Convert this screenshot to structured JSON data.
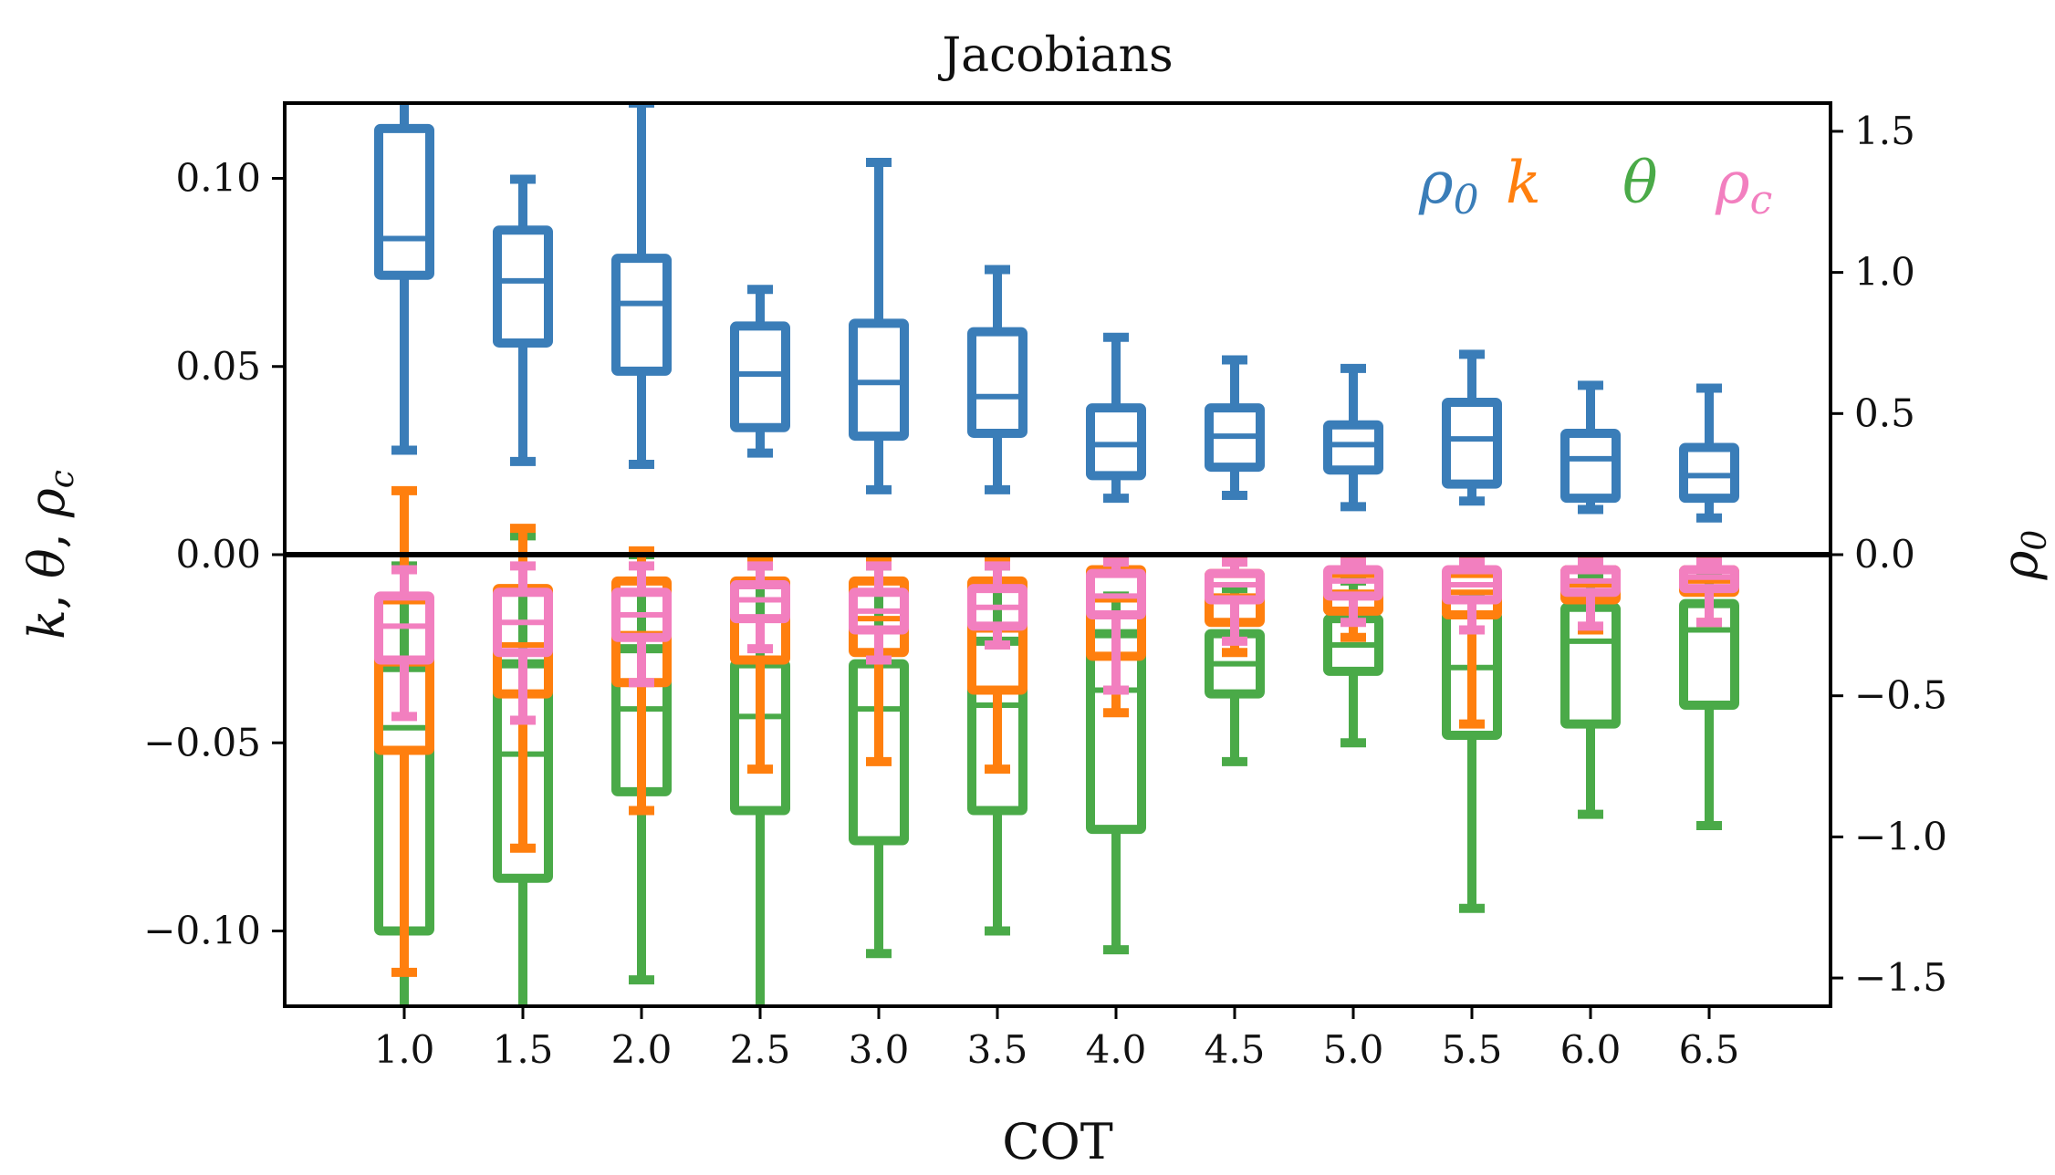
{
  "chart_data": {
    "type": "box",
    "title": "Jacobians",
    "xlabel": "COT",
    "ylabel_left": "k, θ, ρ_c",
    "ylabel_right": "ρ_0",
    "ylim_left": [
      -0.12,
      0.12
    ],
    "ylim_right": [
      -1.6,
      1.6
    ],
    "categories": [
      "1.0",
      "1.5",
      "2.0",
      "2.5",
      "3.0",
      "3.5",
      "4.0",
      "4.5",
      "5.0",
      "5.5",
      "6.0",
      "6.5"
    ],
    "y_ticks_left": [
      -0.1,
      -0.05,
      0.0,
      0.05,
      0.1
    ],
    "y_tick_labels_left": [
      "−0.10",
      "−0.05",
      "0.00",
      "0.05",
      "0.10"
    ],
    "y_ticks_right": [
      -1.5,
      -1.0,
      -0.5,
      0.0,
      0.5,
      1.0,
      1.5
    ],
    "y_tick_labels_right": [
      "−1.5",
      "−1.0",
      "−0.5",
      "0.0",
      "0.5",
      "1.0",
      "1.5"
    ],
    "zero_line": true,
    "legend": [
      {
        "label": "ρ0",
        "base": "ρ",
        "sub": "0",
        "color": "#3a7db8"
      },
      {
        "label": "k",
        "base": "k",
        "sub": "",
        "color": "#ff7f0e"
      },
      {
        "label": "θ",
        "base": "θ",
        "sub": "",
        "color": "#4aaa48"
      },
      {
        "label": "ρc",
        "base": "ρ",
        "sub": "c",
        "color": "#f27fbf"
      }
    ],
    "series": [
      {
        "name": "θ",
        "color": "#4aaa48",
        "axis": "left",
        "boxes": [
          {
            "whislo": -0.135,
            "q1": -0.1,
            "med": -0.046,
            "q3": -0.03,
            "whishi": -0.003
          },
          {
            "whislo": -0.13,
            "q1": -0.086,
            "med": -0.053,
            "q3": -0.029,
            "whishi": 0.005
          },
          {
            "whislo": -0.113,
            "q1": -0.063,
            "med": -0.041,
            "q3": -0.025,
            "whishi": 0.0
          },
          {
            "whislo": -0.125,
            "q1": -0.068,
            "med": -0.043,
            "q3": -0.029,
            "whishi": -0.003
          },
          {
            "whislo": -0.106,
            "q1": -0.076,
            "med": -0.041,
            "q3": -0.029,
            "whishi": -0.003
          },
          {
            "whislo": -0.1,
            "q1": -0.068,
            "med": -0.04,
            "q3": -0.023,
            "whishi": -0.003
          },
          {
            "whislo": -0.105,
            "q1": -0.073,
            "med": -0.036,
            "q3": -0.021,
            "whishi": -0.011
          },
          {
            "whislo": -0.055,
            "q1": -0.037,
            "med": -0.029,
            "q3": -0.021,
            "whishi": -0.009
          },
          {
            "whislo": -0.05,
            "q1": -0.031,
            "med": -0.024,
            "q3": -0.017,
            "whishi": -0.007
          },
          {
            "whislo": -0.094,
            "q1": -0.048,
            "med": -0.03,
            "q3": -0.016,
            "whishi": -0.011
          },
          {
            "whislo": -0.069,
            "q1": -0.045,
            "med": -0.023,
            "q3": -0.014,
            "whishi": -0.006
          },
          {
            "whislo": -0.072,
            "q1": -0.04,
            "med": -0.02,
            "q3": -0.013,
            "whishi": -0.006
          }
        ]
      },
      {
        "name": "k",
        "color": "#ff7f0e",
        "axis": "left",
        "boxes": [
          {
            "whislo": -0.111,
            "q1": -0.052,
            "med": -0.029,
            "q3": -0.012,
            "whishi": 0.017
          },
          {
            "whislo": -0.078,
            "q1": -0.037,
            "med": -0.024,
            "q3": -0.009,
            "whishi": 0.007
          },
          {
            "whislo": -0.068,
            "q1": -0.034,
            "med": -0.021,
            "q3": -0.007,
            "whishi": 0.001
          },
          {
            "whislo": -0.057,
            "q1": -0.028,
            "med": -0.017,
            "q3": -0.007,
            "whishi": -0.001
          },
          {
            "whislo": -0.055,
            "q1": -0.026,
            "med": -0.017,
            "q3": -0.007,
            "whishi": -0.001
          },
          {
            "whislo": -0.057,
            "q1": -0.036,
            "med": -0.02,
            "q3": -0.007,
            "whishi": -0.001
          },
          {
            "whislo": -0.042,
            "q1": -0.027,
            "med": -0.012,
            "q3": -0.004,
            "whishi": -0.001
          },
          {
            "whislo": -0.026,
            "q1": -0.018,
            "med": -0.011,
            "q3": -0.005,
            "whishi": -0.001
          },
          {
            "whislo": -0.022,
            "q1": -0.015,
            "med": -0.01,
            "q3": -0.005,
            "whishi": -0.001
          },
          {
            "whislo": -0.045,
            "q1": -0.016,
            "med": -0.01,
            "q3": -0.005,
            "whishi": -0.001
          },
          {
            "whislo": -0.02,
            "q1": -0.012,
            "med": -0.008,
            "q3": -0.004,
            "whishi": -0.001
          },
          {
            "whislo": -0.018,
            "q1": -0.01,
            "med": -0.007,
            "q3": -0.004,
            "whishi": -0.001
          }
        ]
      },
      {
        "name": "ρc",
        "color": "#f27fbf",
        "axis": "left",
        "boxes": [
          {
            "whislo": -0.043,
            "q1": -0.028,
            "med": -0.019,
            "q3": -0.011,
            "whishi": -0.004
          },
          {
            "whislo": -0.044,
            "q1": -0.026,
            "med": -0.018,
            "q3": -0.01,
            "whishi": -0.003
          },
          {
            "whislo": -0.034,
            "q1": -0.022,
            "med": -0.016,
            "q3": -0.01,
            "whishi": -0.003
          },
          {
            "whislo": -0.025,
            "q1": -0.017,
            "med": -0.012,
            "q3": -0.008,
            "whishi": -0.003
          },
          {
            "whislo": -0.028,
            "q1": -0.02,
            "med": -0.015,
            "q3": -0.01,
            "whishi": -0.003
          },
          {
            "whislo": -0.024,
            "q1": -0.019,
            "med": -0.014,
            "q3": -0.009,
            "whishi": -0.003
          },
          {
            "whislo": -0.036,
            "q1": -0.016,
            "med": -0.011,
            "q3": -0.005,
            "whishi": -0.002
          },
          {
            "whislo": -0.023,
            "q1": -0.012,
            "med": -0.008,
            "q3": -0.005,
            "whishi": -0.002
          },
          {
            "whislo": -0.018,
            "q1": -0.011,
            "med": -0.007,
            "q3": -0.004,
            "whishi": -0.002
          },
          {
            "whislo": -0.02,
            "q1": -0.012,
            "med": -0.008,
            "q3": -0.004,
            "whishi": -0.002
          },
          {
            "whislo": -0.019,
            "q1": -0.01,
            "med": -0.007,
            "q3": -0.004,
            "whishi": -0.002
          },
          {
            "whislo": -0.018,
            "q1": -0.009,
            "med": -0.006,
            "q3": -0.004,
            "whishi": -0.002
          }
        ]
      },
      {
        "name": "ρ0",
        "color": "#3a7db8",
        "axis": "right",
        "boxes": [
          {
            "whislo": 0.37,
            "q1": 0.99,
            "med": 1.12,
            "q3": 1.51,
            "whishi": 1.62
          },
          {
            "whislo": 0.33,
            "q1": 0.75,
            "med": 0.97,
            "q3": 1.15,
            "whishi": 1.33
          },
          {
            "whislo": 0.32,
            "q1": 0.65,
            "med": 0.89,
            "q3": 1.05,
            "whishi": 1.6
          },
          {
            "whislo": 0.36,
            "q1": 0.45,
            "med": 0.64,
            "q3": 0.81,
            "whishi": 0.94
          },
          {
            "whislo": 0.23,
            "q1": 0.42,
            "med": 0.61,
            "q3": 0.82,
            "whishi": 1.39
          },
          {
            "whislo": 0.23,
            "q1": 0.43,
            "med": 0.56,
            "q3": 0.79,
            "whishi": 1.01
          },
          {
            "whislo": 0.2,
            "q1": 0.28,
            "med": 0.39,
            "q3": 0.52,
            "whishi": 0.77
          },
          {
            "whislo": 0.21,
            "q1": 0.31,
            "med": 0.42,
            "q3": 0.52,
            "whishi": 0.69
          },
          {
            "whislo": 0.17,
            "q1": 0.3,
            "med": 0.39,
            "q3": 0.46,
            "whishi": 0.66
          },
          {
            "whislo": 0.19,
            "q1": 0.25,
            "med": 0.41,
            "q3": 0.54,
            "whishi": 0.71
          },
          {
            "whislo": 0.16,
            "q1": 0.2,
            "med": 0.34,
            "q3": 0.43,
            "whishi": 0.6
          },
          {
            "whislo": 0.13,
            "q1": 0.2,
            "med": 0.28,
            "q3": 0.38,
            "whishi": 0.59
          }
        ]
      }
    ]
  }
}
